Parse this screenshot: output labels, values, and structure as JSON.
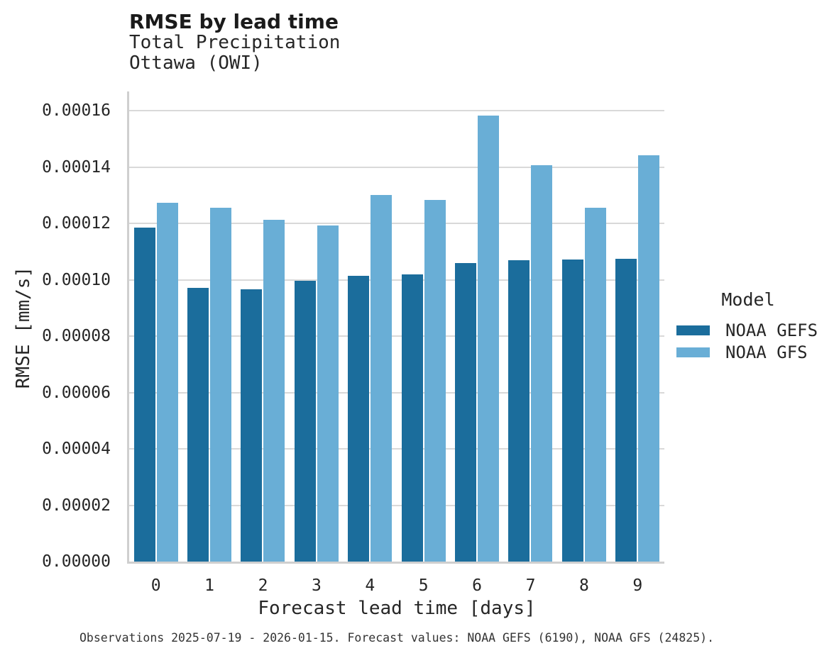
{
  "chart_data": {
    "type": "bar",
    "title": "RMSE by lead time",
    "subtitle_lines": [
      "Total Precipitation",
      "Ottawa (OWI)"
    ],
    "xlabel": "Forecast lead time [days]",
    "ylabel": "RMSE [mm/s]",
    "categories": [
      "0",
      "1",
      "2",
      "3",
      "4",
      "5",
      "6",
      "7",
      "8",
      "9"
    ],
    "series": [
      {
        "name": "NOAA GEFS",
        "color": "#1b6d9c",
        "values": [
          0.0001185,
          9.71e-05,
          9.66e-05,
          9.96e-05,
          0.0001014,
          0.0001019,
          0.000106,
          0.0001069,
          0.0001071,
          0.0001074
        ]
      },
      {
        "name": "NOAA GFS",
        "color": "#69aed6",
        "values": [
          0.0001274,
          0.0001256,
          0.0001212,
          0.0001192,
          0.00013,
          0.0001283,
          0.0001582,
          0.0001406,
          0.0001256,
          0.0001441
        ]
      }
    ],
    "ylim": [
      0,
      0.0001668
    ],
    "ytick_step": 2e-05,
    "ytick_labels": [
      "0.00000",
      "0.00002",
      "0.00004",
      "0.00006",
      "0.00008",
      "0.00010",
      "0.00012",
      "0.00014",
      "0.00016"
    ],
    "legend_title": "Model",
    "legend_position": "right-center",
    "grid": true,
    "caption": "Observations 2025-07-19 - 2026-01-15. Forecast values: NOAA GEFS (6190), NOAA GFS (24825)."
  },
  "colors": {
    "background": "#ffffff",
    "gridline": "#d9d9d9",
    "spine": "#cfcfcf",
    "text": "#262626"
  }
}
